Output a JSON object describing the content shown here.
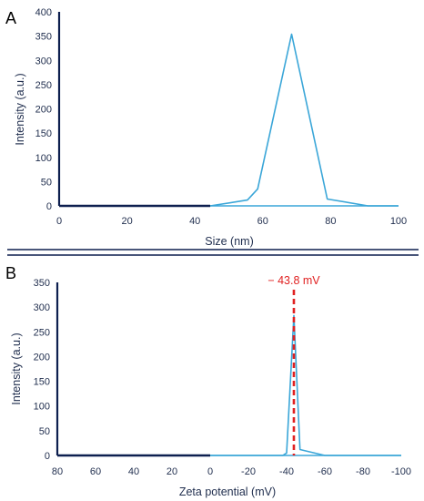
{
  "colors": {
    "axis": "#0d1f4f",
    "series": "#3aa6d8",
    "annotation": "#e02020",
    "text": "#1f2d4d",
    "divider": "#0d1f4f"
  },
  "chart_data": [
    {
      "panel_label": "A",
      "type": "line",
      "title": "",
      "xlabel": "Size (nm)",
      "ylabel": "Intensity (a.u.)",
      "xlim": [
        0,
        100
      ],
      "ylim": [
        0,
        400
      ],
      "xticks": [
        "0",
        "20",
        "40",
        "60",
        "80",
        "100"
      ],
      "yticks": [
        "0",
        "50",
        "100",
        "150",
        "200",
        "250",
        "300",
        "350",
        "400"
      ],
      "grid": false,
      "series": [
        {
          "x": [
            0,
            10,
            20,
            30,
            40,
            44.5,
            55.5,
            58.5,
            68.5,
            79,
            91,
            100
          ],
          "values": [
            0,
            0,
            0,
            0,
            0,
            0,
            12,
            35,
            354,
            14,
            0,
            0
          ]
        }
      ]
    },
    {
      "panel_label": "B",
      "type": "line",
      "title": "",
      "xlabel": "Zeta potential (mV)",
      "ylabel": "Intensity (a.u.)",
      "xlim": [
        80,
        -100
      ],
      "ylim": [
        0,
        350
      ],
      "xticks": [
        "80",
        "60",
        "40",
        "20",
        "0",
        "-20",
        "-40",
        "-60",
        "-80",
        "-100"
      ],
      "yticks": [
        "0",
        "50",
        "100",
        "150",
        "200",
        "250",
        "300",
        "350"
      ],
      "grid": false,
      "series": [
        {
          "x": [
            80,
            60,
            40,
            20,
            0,
            -20,
            -38,
            -40,
            -43.8,
            -47,
            -60,
            -80,
            -100
          ],
          "values": [
            0,
            0,
            0,
            0,
            0,
            0,
            0,
            5,
            283,
            12,
            0,
            0,
            0
          ]
        }
      ],
      "annotations": [
        {
          "x": -43.8,
          "text": "− 43.8 mV",
          "style": "dashed-vertical-line"
        }
      ]
    }
  ]
}
